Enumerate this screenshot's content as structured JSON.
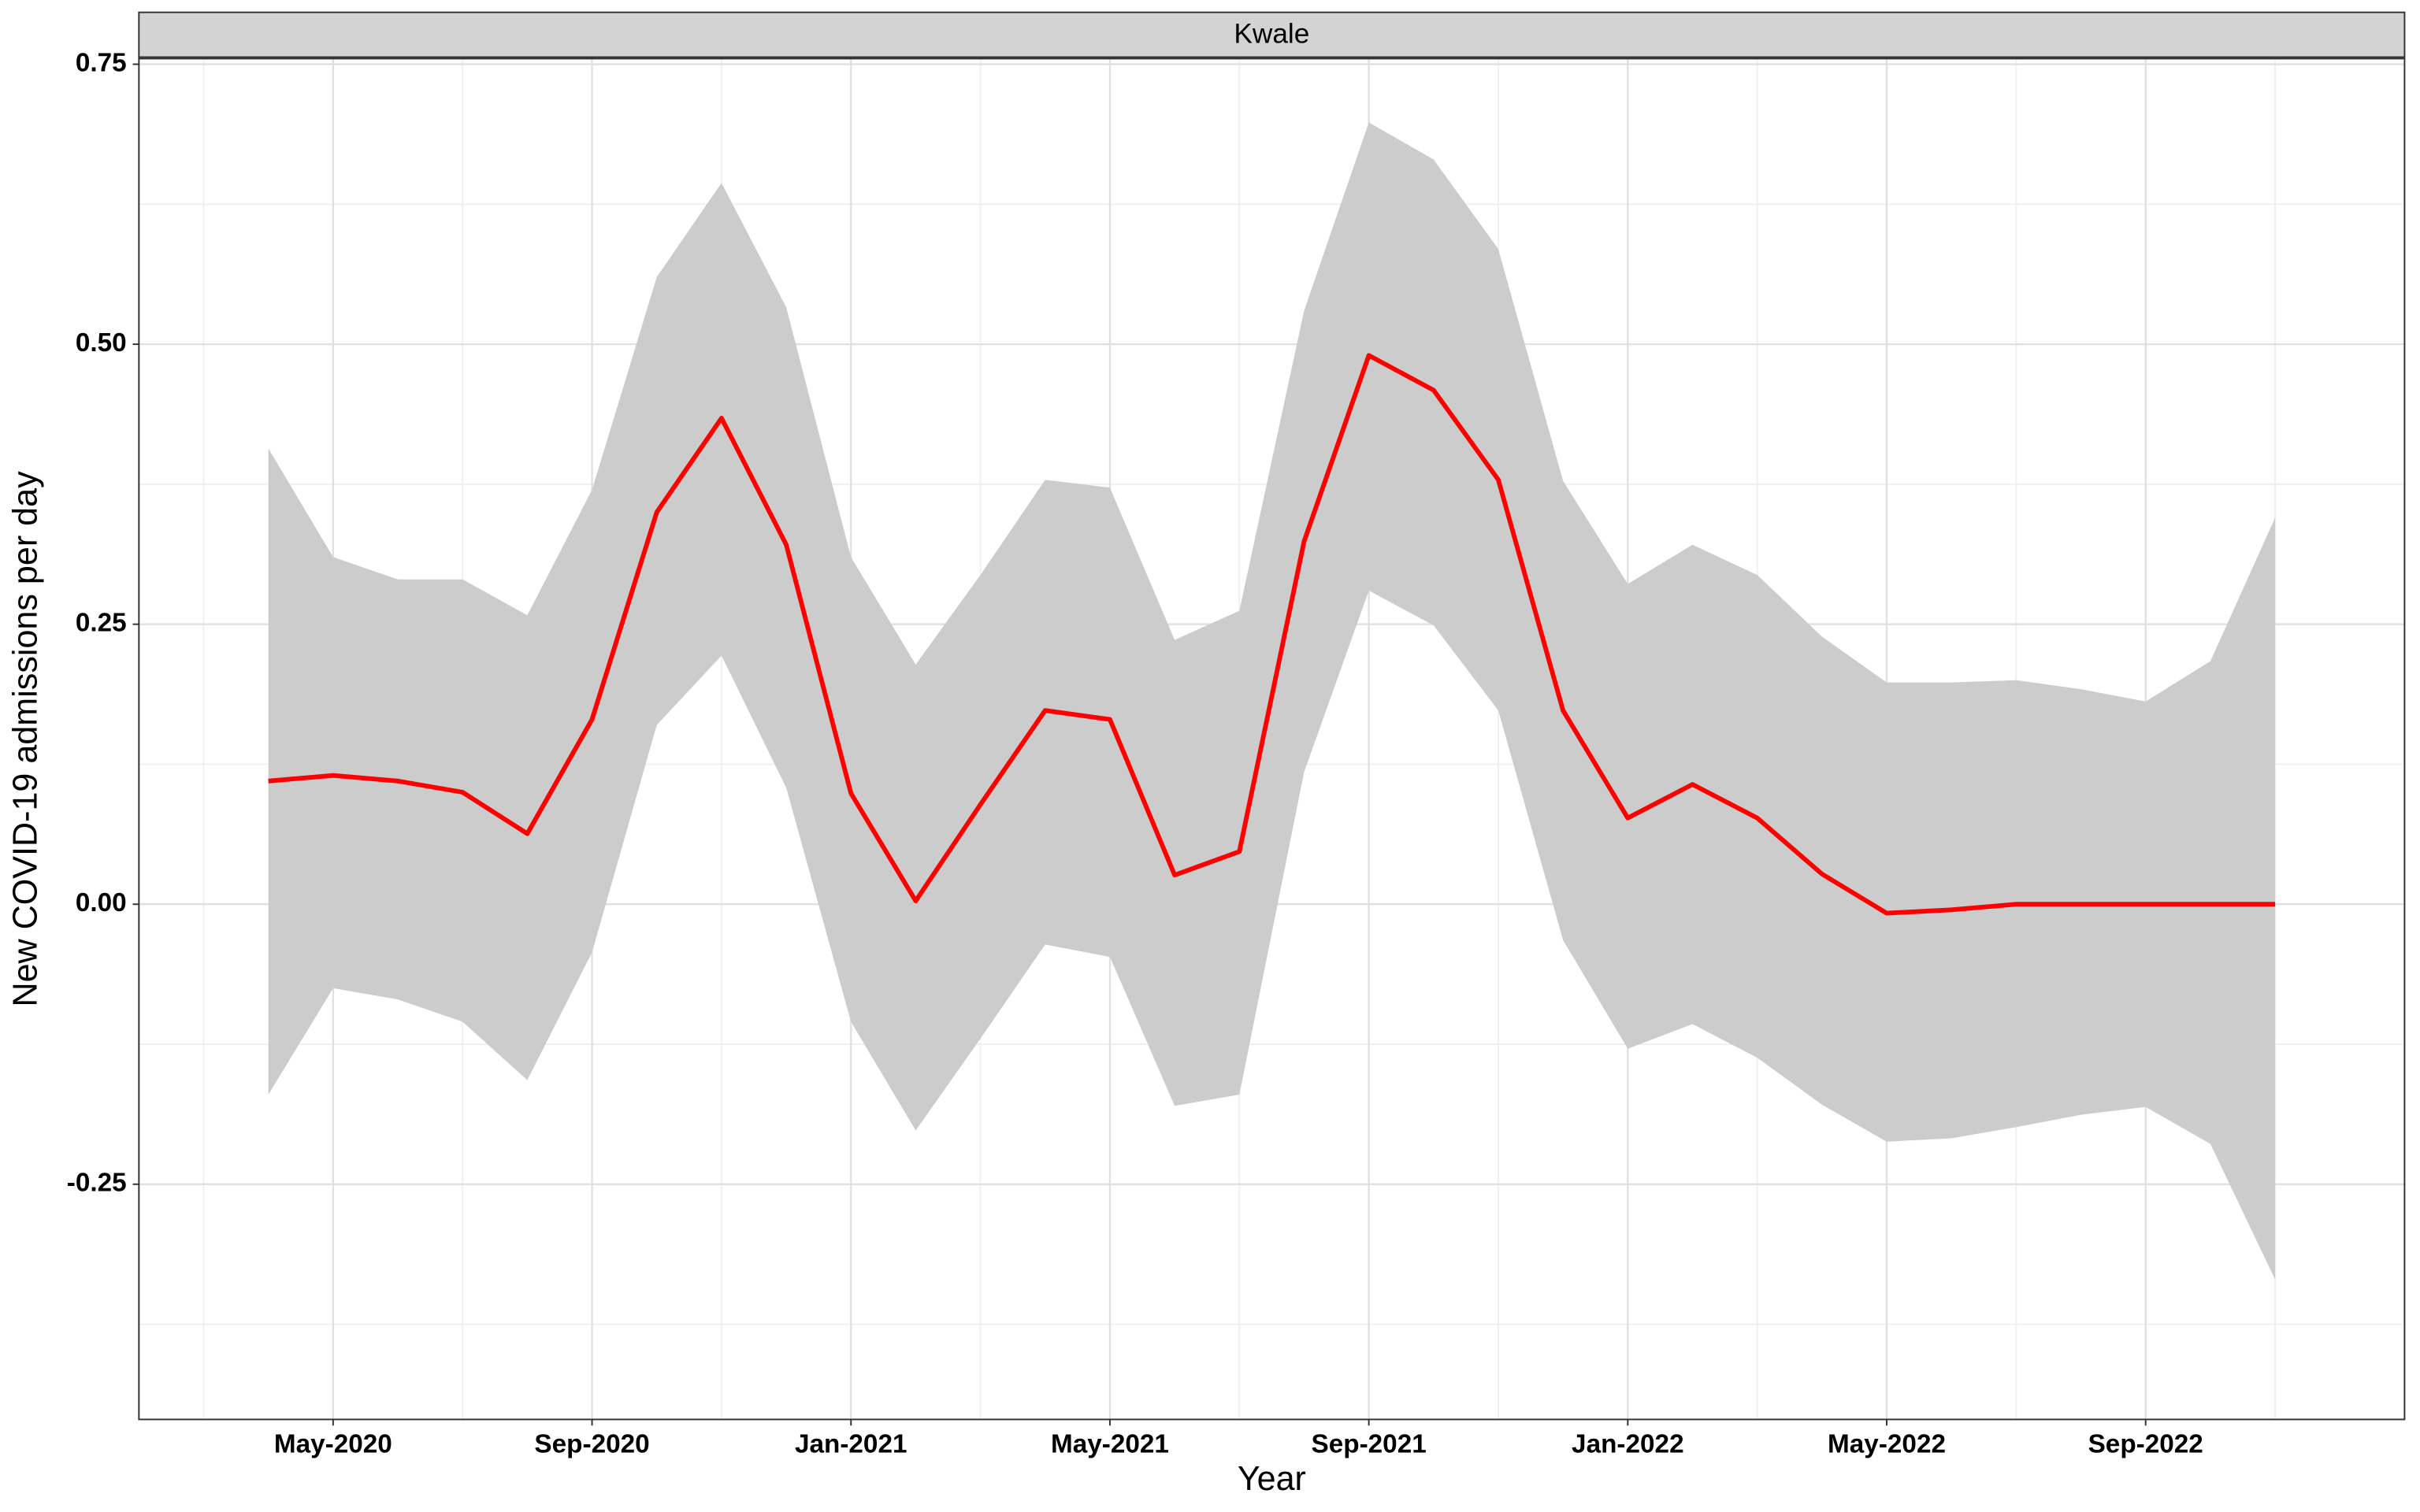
{
  "chart_data": {
    "type": "line",
    "title": "Kwale",
    "xlabel": "Year",
    "ylabel": "New COVID-19 admissions per day",
    "x": [
      "2020-04",
      "2020-05",
      "2020-06",
      "2020-07",
      "2020-08",
      "2020-09",
      "2020-10",
      "2020-11",
      "2020-12",
      "2021-01",
      "2021-02",
      "2021-03",
      "2021-04",
      "2021-05",
      "2021-06",
      "2021-07",
      "2021-08",
      "2021-09",
      "2021-10",
      "2021-11",
      "2021-12",
      "2022-01",
      "2022-02",
      "2022-03",
      "2022-04",
      "2022-05",
      "2022-06",
      "2022-07",
      "2022-08",
      "2022-09",
      "2022-10",
      "2022-11"
    ],
    "series": [
      {
        "color": "#ff0000",
        "values": [
          0.11,
          0.115,
          0.11,
          0.1,
          0.063,
          0.165,
          0.35,
          0.434,
          0.321,
          0.099,
          0.003,
          0.089,
          0.173,
          0.165,
          0.026,
          0.047,
          0.324,
          0.49,
          0.459,
          0.379,
          0.173,
          0.077,
          0.107,
          0.077,
          0.027,
          -0.008,
          -0.005,
          0,
          0,
          0,
          0,
          0
        ]
      }
    ],
    "band": {
      "color": "#cccccc",
      "upper": [
        0.407,
        0.31,
        0.29,
        0.29,
        0.258,
        0.37,
        0.56,
        0.644,
        0.533,
        0.31,
        0.214,
        0.294,
        0.379,
        0.372,
        0.236,
        0.262,
        0.53,
        0.698,
        0.665,
        0.585,
        0.378,
        0.286,
        0.321,
        0.294,
        0.239,
        0.198,
        0.198,
        0.2,
        0.192,
        0.181,
        0.217,
        0.345
      ],
      "lower": [
        -0.17,
        -0.075,
        -0.085,
        -0.105,
        -0.157,
        -0.043,
        0.16,
        0.222,
        0.104,
        -0.105,
        -0.202,
        -0.12,
        -0.036,
        -0.047,
        -0.18,
        -0.17,
        0.118,
        0.28,
        0.249,
        0.173,
        -0.032,
        -0.129,
        -0.107,
        -0.137,
        -0.179,
        -0.212,
        -0.209,
        -0.199,
        -0.188,
        -0.181,
        -0.214,
        -0.335
      ]
    },
    "xlim": [
      "2020-02",
      "2023-01"
    ],
    "xticks": [
      {
        "value": "2020-05",
        "label": "May-2020"
      },
      {
        "value": "2020-09",
        "label": "Sep-2020"
      },
      {
        "value": "2021-01",
        "label": "Jan-2021"
      },
      {
        "value": "2021-05",
        "label": "May-2021"
      },
      {
        "value": "2021-09",
        "label": "Sep-2021"
      },
      {
        "value": "2022-01",
        "label": "Jan-2022"
      },
      {
        "value": "2022-05",
        "label": "May-2022"
      },
      {
        "value": "2022-09",
        "label": "Sep-2022"
      }
    ],
    "ylim": [
      -0.46,
      0.755
    ],
    "yticks": [
      0.75,
      {
        "value": 0.5,
        "label": "0.50"
      },
      0.25,
      {
        "value": 0,
        "label": "0.00"
      },
      -0.25
    ],
    "grid": true
  }
}
